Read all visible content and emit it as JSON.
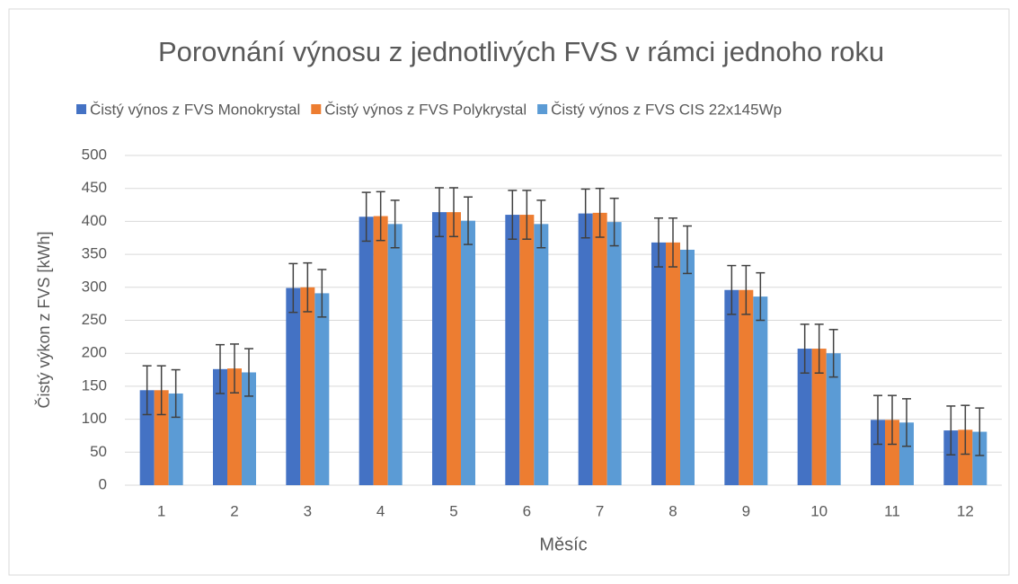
{
  "chart_data": {
    "type": "bar",
    "title": "Porovnání výnosu z jednotlivých FVS  v rámci jednoho roku",
    "x_label": "Měsíc",
    "y_label": "Čistý výkon z FVS [kWh]",
    "categories": [
      "1",
      "2",
      "3",
      "4",
      "5",
      "6",
      "7",
      "8",
      "9",
      "10",
      "11",
      "12"
    ],
    "series": [
      {
        "name": "Čistý výnos z FVS Monokrystal",
        "color": "#4472c4",
        "values": [
          144,
          176,
          299,
          407,
          414,
          410,
          412,
          368,
          296,
          207,
          99,
          83
        ],
        "errors": [
          37,
          37,
          37,
          37,
          37,
          37,
          37,
          37,
          37,
          37,
          37,
          37
        ]
      },
      {
        "name": "Čistý výnos z FVS Polykrystal",
        "color": "#ed7d31",
        "values": [
          144,
          177,
          300,
          408,
          414,
          410,
          413,
          368,
          296,
          207,
          99,
          84
        ],
        "errors": [
          37,
          37,
          37,
          37,
          37,
          37,
          37,
          37,
          37,
          37,
          37,
          37
        ]
      },
      {
        "name": "Čistý výnos z FVS CIS 22x145Wp",
        "color": "#5b9bd5",
        "values": [
          139,
          171,
          291,
          396,
          401,
          396,
          399,
          357,
          286,
          200,
          95,
          81
        ],
        "errors": [
          36,
          36,
          36,
          36,
          36,
          36,
          36,
          36,
          36,
          36,
          36,
          36
        ]
      }
    ],
    "ylim": [
      0,
      500
    ],
    "yticks": [
      0,
      50,
      100,
      150,
      200,
      250,
      300,
      350,
      400,
      450,
      500
    ],
    "grid": true,
    "legend": "top"
  }
}
